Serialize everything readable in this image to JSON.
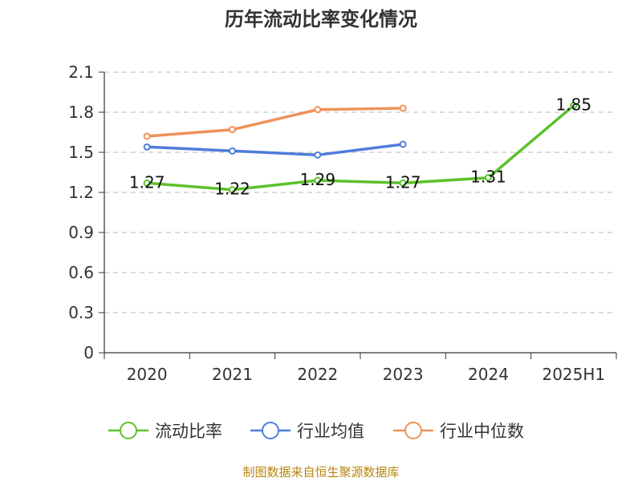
{
  "chart_data": {
    "type": "line",
    "title": "历年流动比率变化情况",
    "categories": [
      "2020",
      "2021",
      "2022",
      "2023",
      "2024",
      "2025H1"
    ],
    "ylim": [
      0,
      2.1
    ],
    "yticks": [
      "0",
      "0.3",
      "0.6",
      "0.9",
      "1.2",
      "1.5",
      "1.8",
      "2.1"
    ],
    "grid": true,
    "legend_position": "bottom",
    "series": [
      {
        "name": "流动比率",
        "color": "#5cc12a",
        "values": [
          1.27,
          1.22,
          1.29,
          1.27,
          1.31,
          1.85
        ],
        "labels": [
          "1.27",
          "1.22",
          "1.29",
          "1.27",
          "1.31",
          "1.85"
        ]
      },
      {
        "name": "行业均值",
        "color": "#4e7ddb",
        "values": [
          1.54,
          1.51,
          1.48,
          1.56,
          null,
          null
        ]
      },
      {
        "name": "行业中位数",
        "color": "#f0915a",
        "values": [
          1.62,
          1.67,
          1.82,
          1.83,
          null,
          null
        ]
      }
    ],
    "source": "制图数据来自恒生聚源数据库"
  }
}
